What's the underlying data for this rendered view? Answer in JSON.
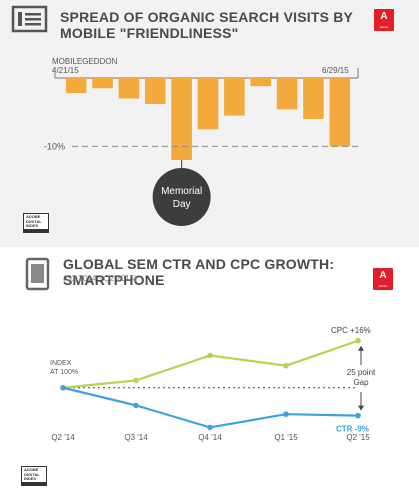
{
  "panel1": {
    "title": "SPREAD OF ORGANIC SEARCH VISITS BY MOBILE \"FRIENDLINESS\"",
    "adobe_logo_label": "A",
    "adobe_logo_sub": "Adobe",
    "badge": [
      "ADOBE",
      "DIGITAL",
      "INDEX",
      "2015"
    ]
  },
  "panel2": {
    "title": "GLOBAL SEM CTR AND CPC GROWTH: SMARTPHONE",
    "subtitle": "(Q2 2014 - Q2 2015)",
    "adobe_logo_label": "A",
    "adobe_logo_sub": "Adobe",
    "badge": [
      "ADOBE",
      "DIGITAL",
      "INDEX",
      "2015"
    ]
  },
  "chart_data": [
    {
      "type": "bar",
      "title": "SPREAD OF ORGANIC SEARCH VISITS BY MOBILE \"FRIENDLINESS\"",
      "start_label": "MOBILEGEDDON",
      "start_date": "4/21/15",
      "end_date": "6/29/15",
      "gridline_label": "-10%",
      "gridline_value": -10,
      "ylim": [
        -12,
        0
      ],
      "values": [
        -2.2,
        -1.5,
        -3.0,
        -3.8,
        -12.0,
        -7.5,
        -5.5,
        -1.2,
        -4.6,
        -6.0,
        -10.0
      ],
      "callout": {
        "bar_index": 4,
        "text": [
          "Memorial",
          "Day"
        ]
      },
      "colors": {
        "bar": "#f4a93c",
        "axis": "#777777",
        "callout": "#3d3d3d"
      }
    },
    {
      "type": "line",
      "title": "GLOBAL SEM CTR AND CPC GROWTH: SMARTPHONE",
      "subtitle": "(Q2 2014 - Q2 2015)",
      "categories": [
        "Q2 '14",
        "Q3 '14",
        "Q4 '14",
        "Q1 '15",
        "Q2 '15"
      ],
      "baseline_label": [
        "INDEX",
        "AT 100%"
      ],
      "baseline": 100,
      "ylim": [
        88,
        120
      ],
      "series": [
        {
          "name": "CPC",
          "end_label": "CPC +16%",
          "values": [
            100,
            102.5,
            111,
            107.5,
            116
          ],
          "color": "#b4d452"
        },
        {
          "name": "CTR",
          "end_label": "CTR -9%",
          "values": [
            100,
            94,
            86.5,
            91,
            90.5
          ],
          "color": "#3da3dc"
        }
      ],
      "gap_label": [
        "25 point",
        "Gap"
      ],
      "colors": {
        "baseline": "#444444"
      }
    }
  ]
}
